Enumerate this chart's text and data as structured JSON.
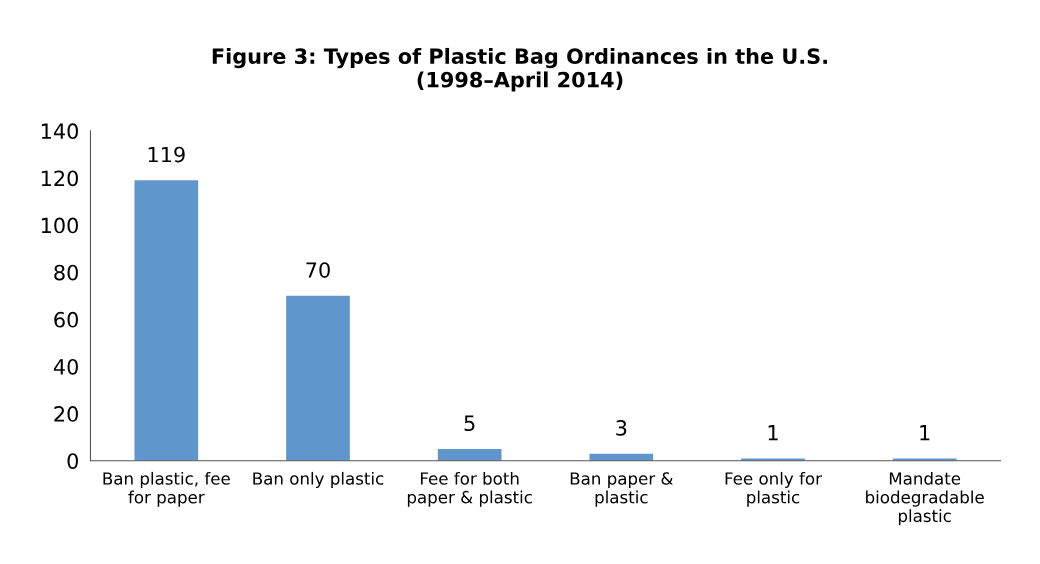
{
  "chart_data": {
    "type": "bar",
    "title": "Figure 3: Types of Plastic Bag Ordinances in the U.S.\n(1998–April 2014)",
    "categories": [
      "Ban plastic, fee\nfor paper",
      "Ban only plastic",
      "Fee for both\npaper & plastic",
      "Ban paper &\nplastic",
      "Fee only for\nplastic",
      "Mandate\nbiodegradable\nplastic"
    ],
    "values": [
      119,
      70,
      5,
      3,
      1,
      1
    ],
    "color": "#6096cc",
    "ylim": [
      0,
      140
    ],
    "yticks": [
      0,
      20,
      40,
      60,
      80,
      100,
      120,
      140
    ],
    "data_labels": true,
    "grid": false
  }
}
